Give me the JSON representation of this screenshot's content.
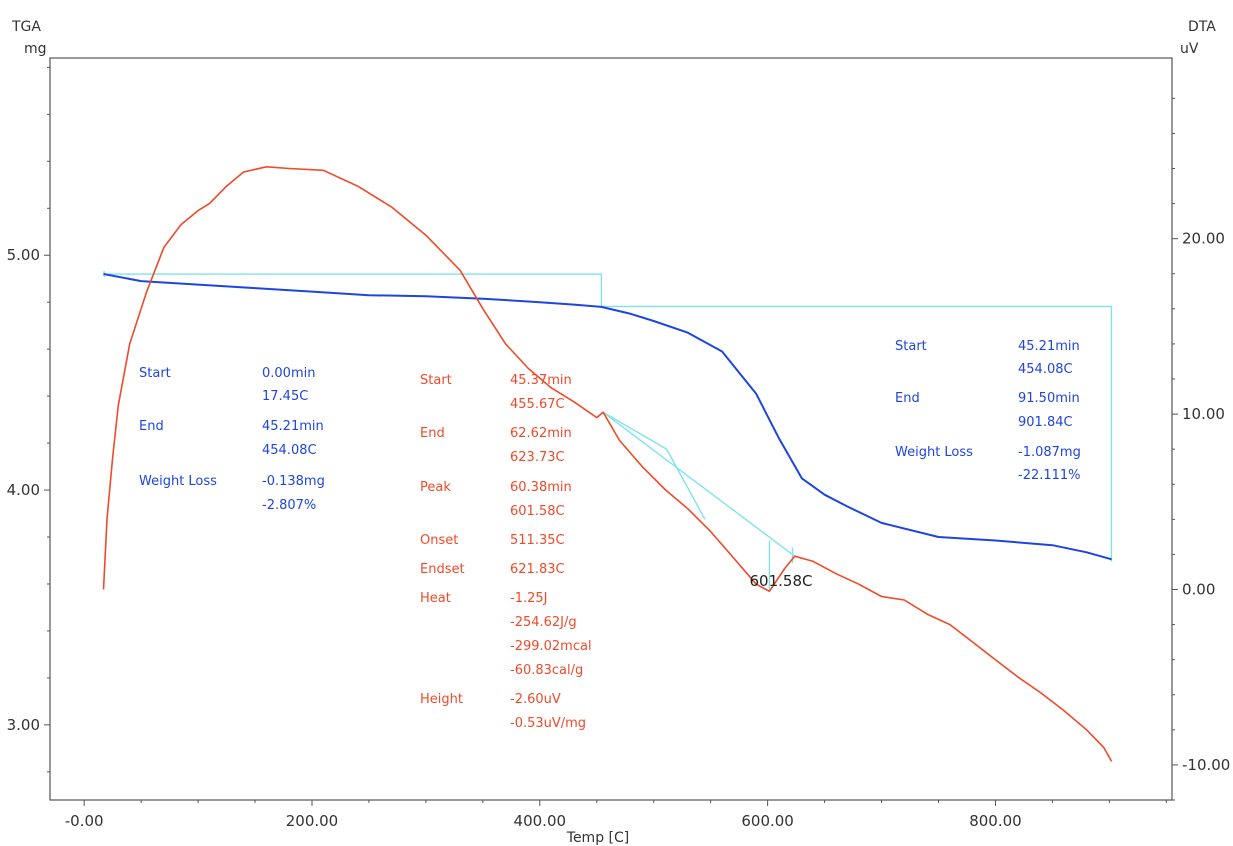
{
  "chart_data": {
    "type": "line",
    "xlabel": "Temp  [C]",
    "left_axis": {
      "name": "TGA",
      "unit": "mg"
    },
    "right_axis": {
      "name": "DTA",
      "unit": "uV"
    },
    "xlim": [
      -30,
      955
    ],
    "ylim_left": [
      2.68,
      5.84
    ],
    "ylim_right": [
      -12.0,
      30.3
    ],
    "x_ticks": [
      {
        "v": 0,
        "label": "-0.00"
      },
      {
        "v": 200,
        "label": "200.00"
      },
      {
        "v": 400,
        "label": "400.00"
      },
      {
        "v": 600,
        "label": "600.00"
      },
      {
        "v": 800,
        "label": "800.00"
      }
    ],
    "y_left_ticks": [
      {
        "v": 5,
        "label": "5.00"
      },
      {
        "v": 4,
        "label": "4.00"
      },
      {
        "v": 3,
        "label": "3.00"
      }
    ],
    "y_right_ticks": [
      {
        "v": 20,
        "label": "20.00"
      },
      {
        "v": 10,
        "label": "10.00"
      },
      {
        "v": 0,
        "label": "0.00"
      },
      {
        "v": -10,
        "label": "-10.00"
      }
    ],
    "colors": {
      "tga": "#1f45e0",
      "dta": "#f04a2a",
      "analysis": "#7fe3ea",
      "axis": "#555555"
    },
    "series": [
      {
        "axis": "left",
        "x": [
          17,
          50,
          100,
          150,
          200,
          250,
          300,
          350,
          400,
          430,
          454,
          480,
          500,
          530,
          560,
          590,
          610,
          630,
          650,
          670,
          700,
          750,
          800,
          850,
          880,
          902
        ],
        "y": [
          4.92,
          4.89,
          4.875,
          4.86,
          4.845,
          4.83,
          4.825,
          4.815,
          4.8,
          4.79,
          4.78,
          4.75,
          4.72,
          4.67,
          4.59,
          4.41,
          4.22,
          4.05,
          3.98,
          3.93,
          3.86,
          3.8,
          3.785,
          3.765,
          3.735,
          3.705
        ]
      },
      {
        "axis": "right",
        "x": [
          17,
          20,
          25,
          30,
          40,
          55,
          70,
          85,
          100,
          110,
          125,
          140,
          160,
          180,
          210,
          240,
          270,
          300,
          330,
          350,
          370,
          390,
          410,
          430,
          450,
          455.67,
          470,
          490,
          510,
          530,
          550,
          570,
          590,
          601.58,
          615,
          623.73,
          640,
          660,
          680,
          700,
          720,
          740,
          760,
          780,
          800,
          820,
          840,
          860,
          880,
          895,
          902
        ],
        "y": [
          0.0,
          4.0,
          7.5,
          10.5,
          14.0,
          17.0,
          19.5,
          20.8,
          21.6,
          22.0,
          23.0,
          23.8,
          24.1,
          24.0,
          23.9,
          23.0,
          21.8,
          20.2,
          18.2,
          16.0,
          14.0,
          12.6,
          11.5,
          10.7,
          9.8,
          10.1,
          8.5,
          7.0,
          5.7,
          4.6,
          3.3,
          1.8,
          0.3,
          -0.1,
          1.2,
          1.9,
          1.6,
          0.9,
          0.3,
          -0.4,
          -0.6,
          -1.4,
          -2.0,
          -3.0,
          -4.0,
          -5.0,
          -5.9,
          -6.9,
          -8.0,
          -9.0,
          -9.8
        ]
      }
    ],
    "annotations": {
      "tga_step1": {
        "start_label": "Start",
        "start_min": "0.00min",
        "start_temp": "17.45C",
        "end_label": "End",
        "end_min": "45.21min",
        "end_temp": "454.08C",
        "loss_label": "Weight Loss",
        "loss_mg": "-0.138mg",
        "loss_pct": "-2.807%"
      },
      "dta_peak": {
        "start_label": "Start",
        "start_min": "45.37min",
        "start_temp": "455.67C",
        "end_label": "End",
        "end_min": "62.62min",
        "end_temp": "623.73C",
        "peak_label": "Peak",
        "peak_min": "60.38min",
        "peak_temp": "601.58C",
        "onset_label": "Onset",
        "onset_val": "511.35C",
        "endset_label": "Endset",
        "endset_val": "621.83C",
        "heat_label": "Heat",
        "heat_j": "-1.25J",
        "heat_jg": "-254.62J/g",
        "heat_mcal": "-299.02mcal",
        "heat_calg": "-60.83cal/g",
        "height_label": "Height",
        "height_uv": "-2.60uV",
        "height_uvmg": "-0.53uV/mg"
      },
      "tga_step2": {
        "start_label": "Start",
        "start_min": "45.21min",
        "start_temp": "454.08C",
        "end_label": "End",
        "end_min": "91.50min",
        "end_temp": "901.84C",
        "loss_label": "Weight Loss",
        "loss_mg": "-1.087mg",
        "loss_pct": "-22.111%"
      },
      "peak_marker": "601.58C"
    }
  }
}
